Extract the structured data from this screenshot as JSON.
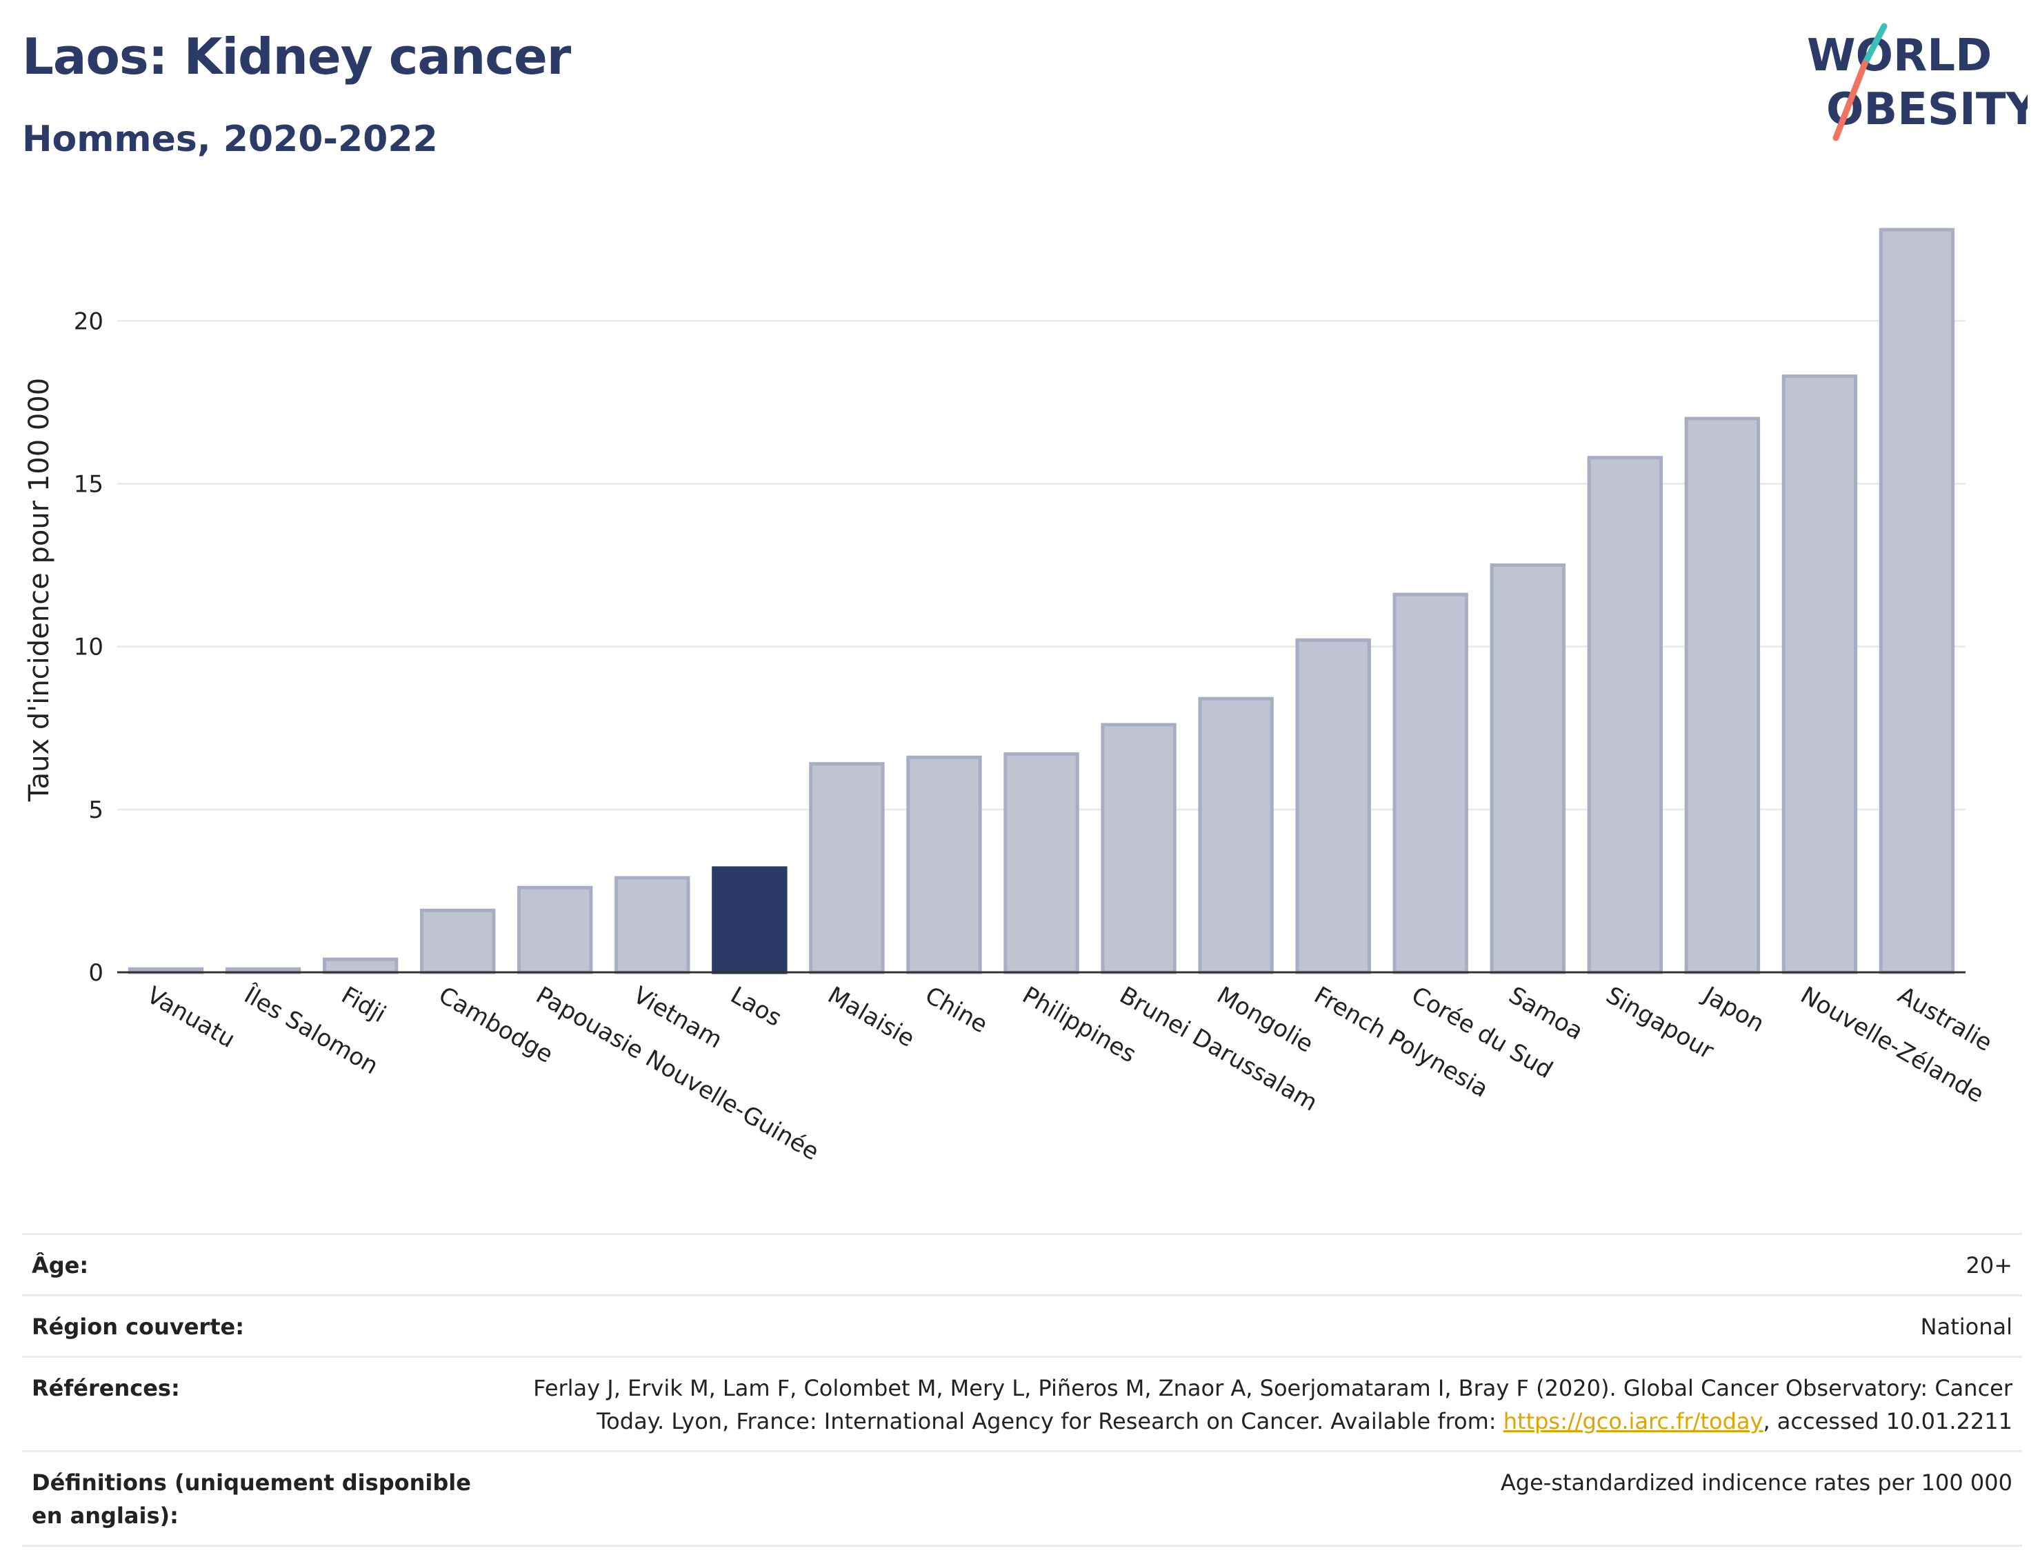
{
  "header": {
    "title": "Laos: Kidney cancer",
    "subtitle": "Hommes, 2020-2022",
    "logo_line1": "WORLD",
    "logo_line2": "OBESITY"
  },
  "colors": {
    "title": "#2b3a67",
    "highlight_bar": "#2b3a67",
    "other_bar": "#c0c4d2",
    "other_bar_border": "#a7adc3",
    "grid": "#e9ebf1",
    "logo_teal": "#3bbfb6",
    "logo_coral": "#f07560"
  },
  "chart_data": {
    "type": "bar",
    "ylabel": "Taux d'incidence pour 100 000",
    "xlabel": "",
    "ylim": [
      0,
      23.5
    ],
    "yticks": [
      0,
      5,
      10,
      15,
      20
    ],
    "grid": true,
    "highlight": "Laos",
    "categories": [
      "Vanuatu",
      "Îles Salomon",
      "Fidji",
      "Cambodge",
      "Papouasie Nouvelle-Guinée",
      "Vietnam",
      "Laos",
      "Malaisie",
      "Chine",
      "Philippines",
      "Brunei Darussalam",
      "Mongolie",
      "French Polynesia",
      "Corée du Sud",
      "Samoa",
      "Singapour",
      "Japon",
      "Nouvelle-Zélande",
      "Australie"
    ],
    "values": [
      0.1,
      0.1,
      0.4,
      1.9,
      2.6,
      2.9,
      3.2,
      6.4,
      6.6,
      6.7,
      7.6,
      8.4,
      10.2,
      11.6,
      12.5,
      15.8,
      17.0,
      18.3,
      22.8
    ]
  },
  "info": {
    "age_label": "Âge:",
    "age_value": "20+",
    "region_label": "Région couverte:",
    "region_value": "National",
    "ref_label": "Références:",
    "ref_text_before": "Ferlay J, Ervik M, Lam F, Colombet M, Mery L, Piñeros M, Znaor A, Soerjomataram I, Bray F (2020). Global Cancer Observatory: Cancer Today. Lyon, France: International Agency for Research on Cancer. Available from: ",
    "ref_link": "https://gco.iarc.fr/today",
    "ref_text_after": ", accessed 10.01.2211",
    "def_label": "Définitions (uniquement disponible en anglais):",
    "def_value": "Age-standardized indicence rates per 100 000"
  }
}
